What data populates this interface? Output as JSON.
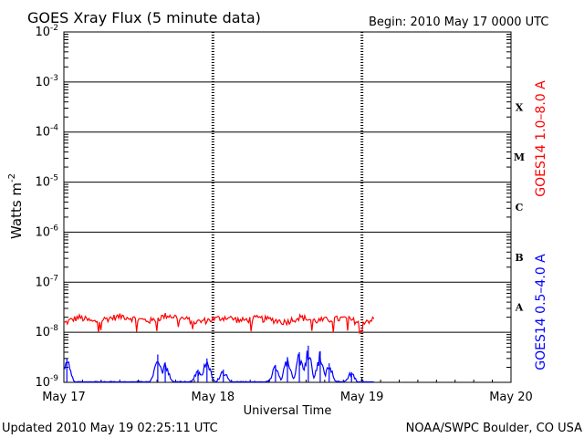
{
  "chart_data": {
    "type": "line",
    "title": "GOES Xray Flux (5 minute data)",
    "begin_label": "Begin:  2010 May 17 0000 UTC",
    "xlabel": "Universal Time",
    "ylabel": "Watts m",
    "ylabel_sup": "-2",
    "y_scale": "log",
    "ylim": [
      1e-09,
      0.01
    ],
    "xlim_days": [
      0,
      3
    ],
    "x_ticks": [
      "May 17",
      "May 18",
      "May 19",
      "May 20"
    ],
    "y_ticks": [
      {
        "base": "10",
        "exp": "-2"
      },
      {
        "base": "10",
        "exp": "-3"
      },
      {
        "base": "10",
        "exp": "-4"
      },
      {
        "base": "10",
        "exp": "-5"
      },
      {
        "base": "10",
        "exp": "-6"
      },
      {
        "base": "10",
        "exp": "-7"
      },
      {
        "base": "10",
        "exp": "-8"
      },
      {
        "base": "10",
        "exp": "-9"
      }
    ],
    "flare_classes": [
      "X",
      "M",
      "C",
      "B",
      "A"
    ],
    "grid": "horizontal at decades, dotted verticals at day boundaries",
    "series": [
      {
        "name": "GOES14 1.0–8.0 A",
        "color": "#ff0000",
        "x_start": 0,
        "x_end": 2.08,
        "baseline": 1.7e-08,
        "values_sample": [
          1.5e-08,
          2e-08,
          1.6e-08,
          1.9e-08,
          2.1e-08,
          1.8e-08,
          1.7e-08,
          2.2e-08,
          1.9e-08,
          1.6e-08,
          1.8e-08,
          2e-08,
          1.7e-08,
          1.9e-08,
          1.8e-08,
          1.6e-08,
          2e-08,
          1.7e-08,
          1.8e-08,
          1.9e-08,
          1.6e-08,
          1.8e-08
        ]
      },
      {
        "name": "GOES14 0.5–4.0 A",
        "color": "#0000ff",
        "x_start": 0,
        "x_end": 2.08,
        "baseline": 1e-09,
        "peaks": [
          {
            "x": 0.02,
            "y": 3e-09
          },
          {
            "x": 0.63,
            "y": 3.6e-09
          },
          {
            "x": 0.68,
            "y": 2.5e-09
          },
          {
            "x": 0.9,
            "y": 1.8e-09
          },
          {
            "x": 0.96,
            "y": 3e-09
          },
          {
            "x": 1.07,
            "y": 1.8e-09
          },
          {
            "x": 1.42,
            "y": 2.2e-09
          },
          {
            "x": 1.5,
            "y": 3.2e-09
          },
          {
            "x": 1.58,
            "y": 4e-09
          },
          {
            "x": 1.64,
            "y": 5.4e-09
          },
          {
            "x": 1.72,
            "y": 4.2e-09
          },
          {
            "x": 1.78,
            "y": 2.4e-09
          },
          {
            "x": 1.93,
            "y": 1.6e-09
          }
        ]
      }
    ]
  },
  "footer": {
    "updated": "Updated 2010 May 19 02:25:11 UTC",
    "credit": "NOAA/SWPC Boulder, CO USA"
  }
}
